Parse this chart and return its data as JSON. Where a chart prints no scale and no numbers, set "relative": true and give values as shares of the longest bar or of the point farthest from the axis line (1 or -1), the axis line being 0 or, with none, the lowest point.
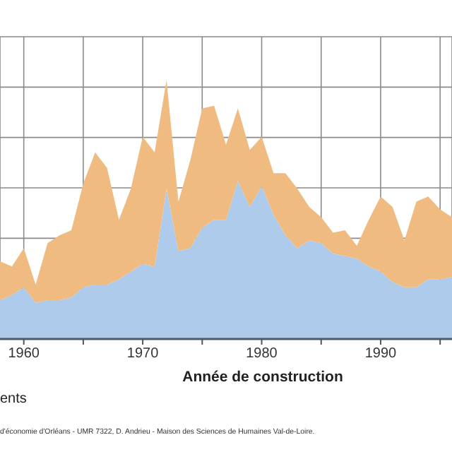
{
  "chart_data": {
    "type": "area",
    "stacked": true,
    "relative": true,
    "xlabel": "Année de construction",
    "annotations": [
      "ents",
      "d'économie d'Orléans - UMR 7322,  D. Andrieu - Maison des Sciences de Humaines Val-de-Loire."
    ],
    "x": [
      1958,
      1959,
      1960,
      1961,
      1962,
      1963,
      1964,
      1965,
      1966,
      1967,
      1968,
      1969,
      1970,
      1971,
      1972,
      1973,
      1974,
      1975,
      1976,
      1977,
      1978,
      1979,
      1980,
      1981,
      1982,
      1983,
      1984,
      1985,
      1986,
      1987,
      1988,
      1989,
      1990,
      1991,
      1992,
      1993,
      1994,
      1995,
      1996
    ],
    "xlim": [
      1958,
      1996
    ],
    "xticks": [
      1960,
      {
        "value": 1965,
        "label": null
      },
      1970,
      {
        "value": 1975,
        "label": null
      },
      1980,
      {
        "value": 1985,
        "label": null
      },
      1990,
      {
        "value": 1995,
        "label": null
      }
    ],
    "grid": true,
    "series": [
      {
        "color": "#aecbeb",
        "values": [
          0.15,
          0.17,
          0.2,
          0.14,
          0.15,
          0.15,
          0.16,
          0.2,
          0.21,
          0.21,
          0.23,
          0.26,
          0.29,
          0.28,
          0.58,
          0.34,
          0.35,
          0.43,
          0.46,
          0.46,
          0.61,
          0.51,
          0.59,
          0.48,
          0.4,
          0.35,
          0.38,
          0.37,
          0.33,
          0.32,
          0.31,
          0.28,
          0.26,
          0.22,
          0.2,
          0.2,
          0.23,
          0.23,
          0.24
        ]
      },
      {
        "color": "#f0bb80",
        "values": [
          0.15,
          0.11,
          0.15,
          0.07,
          0.22,
          0.25,
          0.26,
          0.4,
          0.51,
          0.45,
          0.23,
          0.32,
          0.49,
          0.44,
          0.42,
          0.19,
          0.34,
          0.46,
          0.44,
          0.29,
          0.28,
          0.22,
          0.19,
          0.16,
          0.24,
          0.23,
          0.13,
          0.1,
          0.08,
          0.1,
          0.05,
          0.18,
          0.29,
          0.29,
          0.18,
          0.33,
          0.32,
          0.27,
          0.23
        ]
      }
    ]
  }
}
